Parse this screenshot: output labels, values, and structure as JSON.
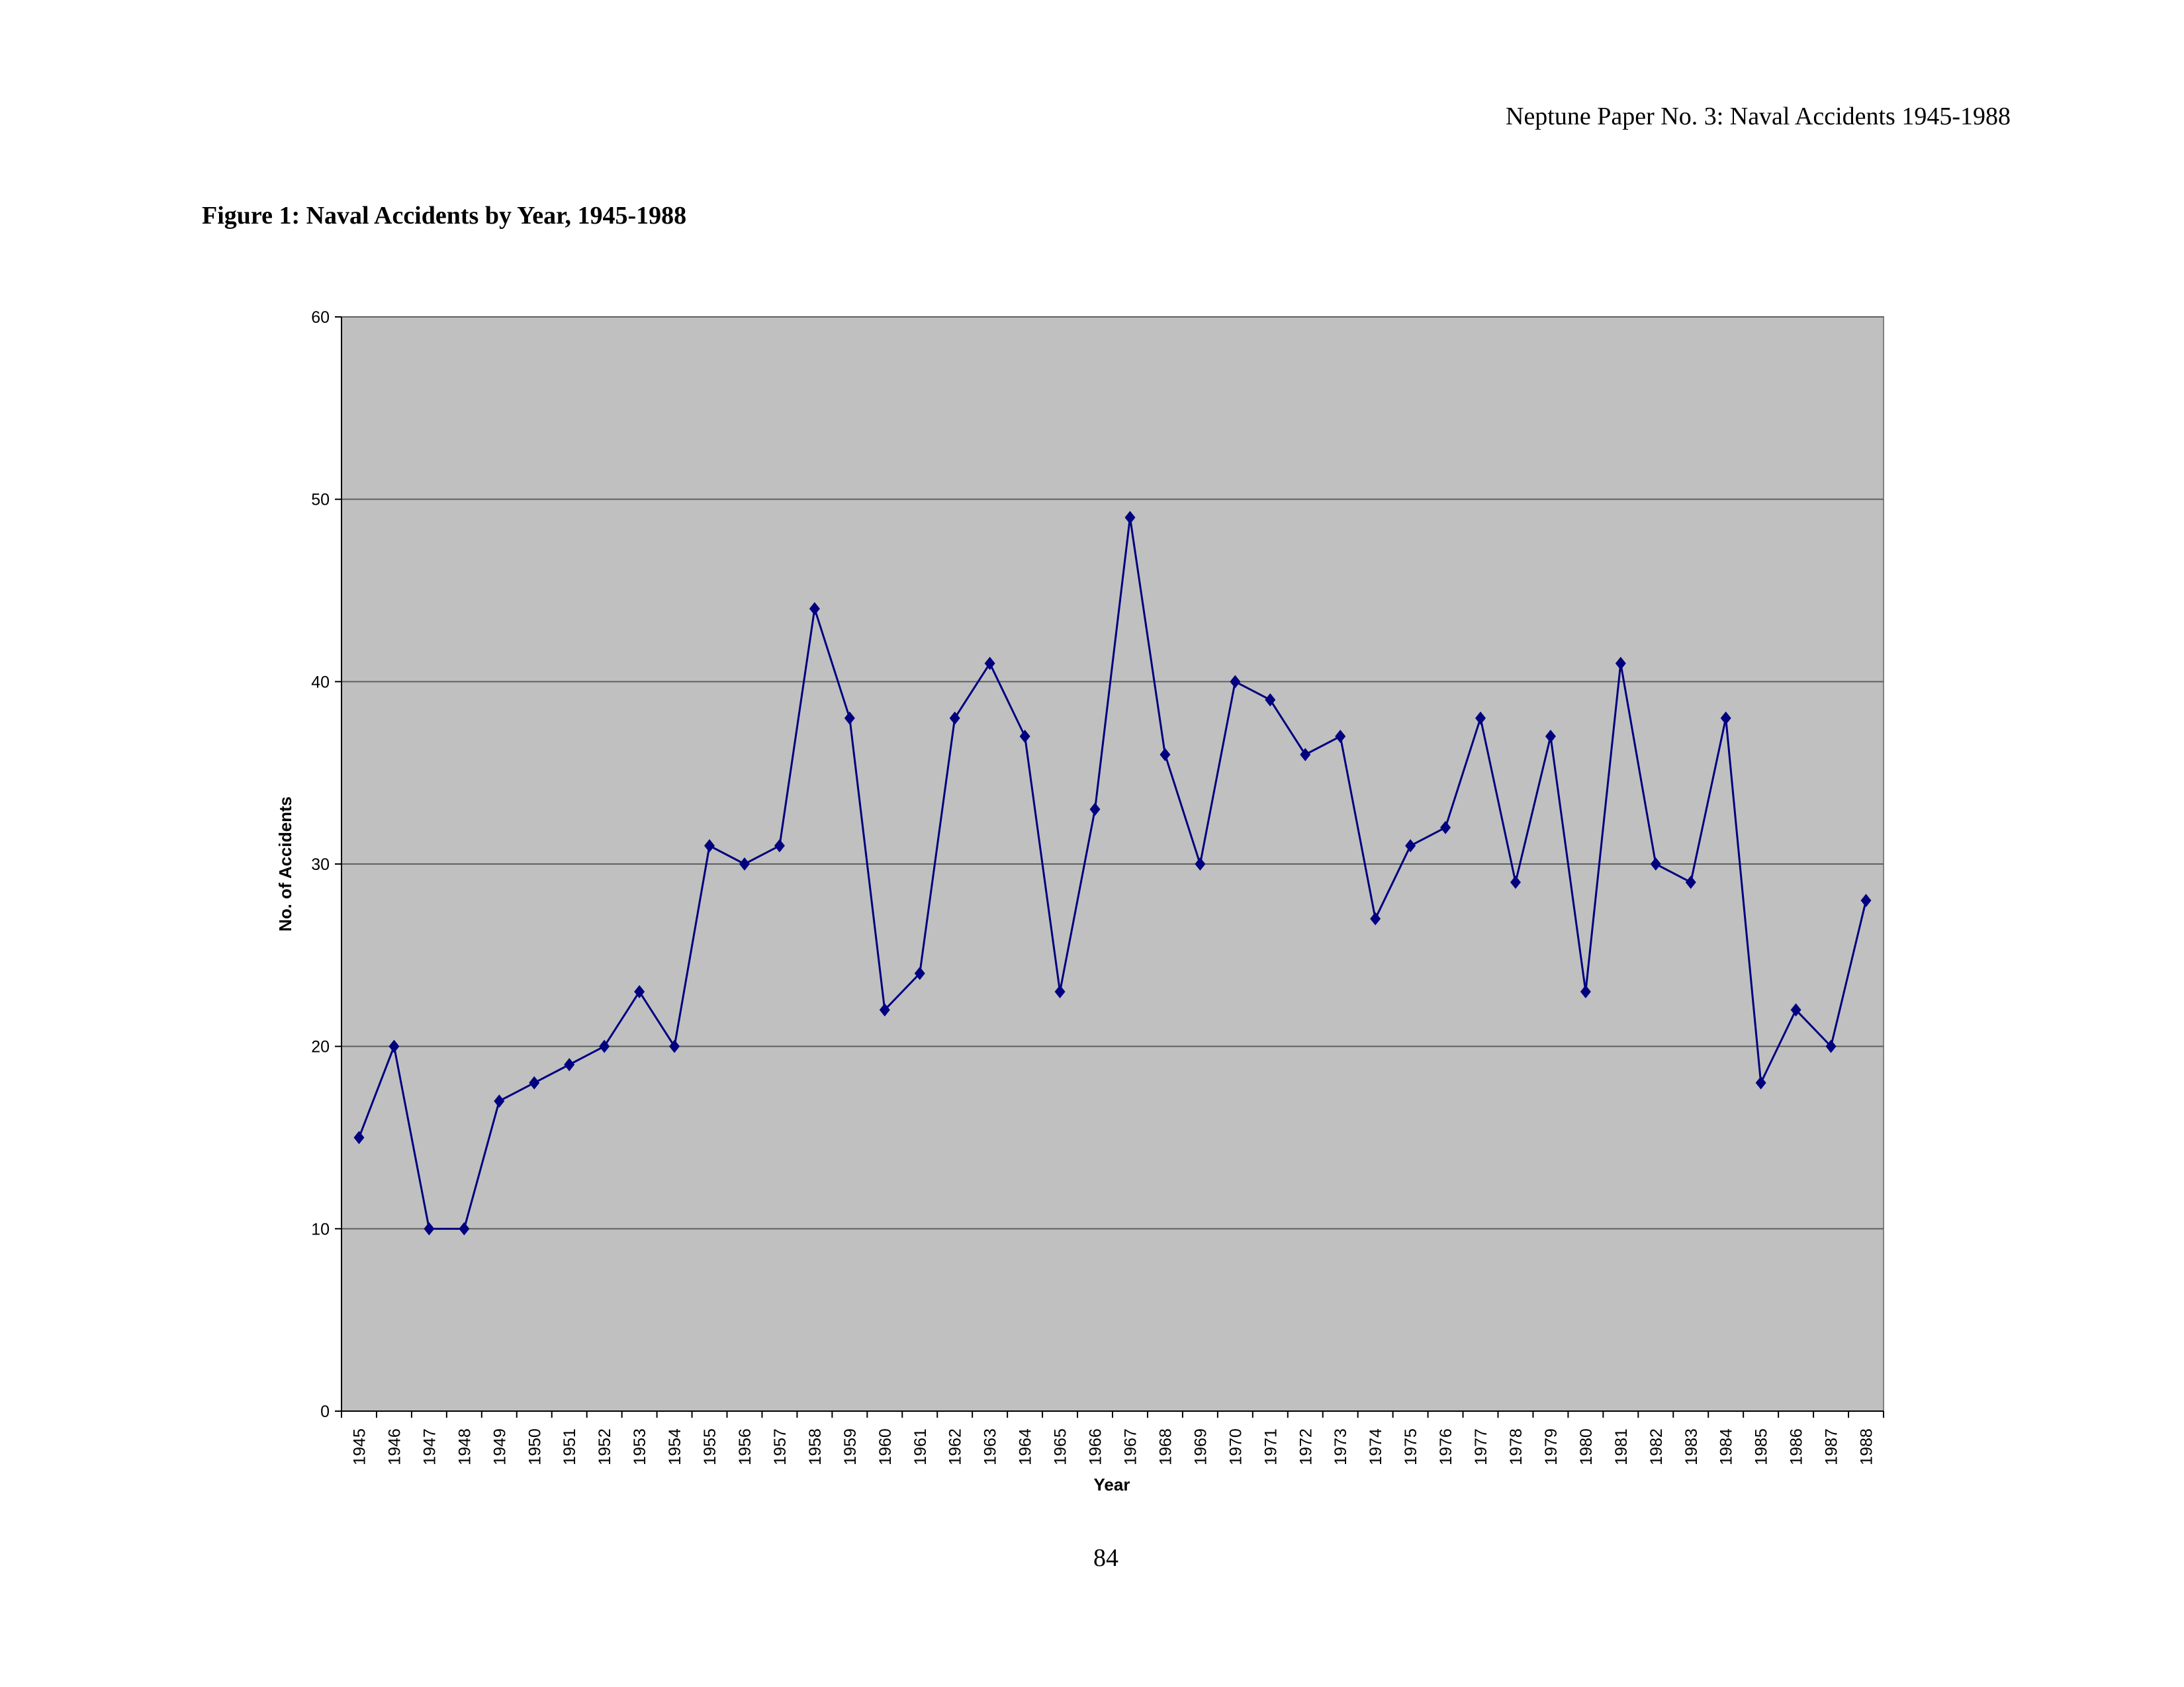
{
  "header": "Neptune Paper No. 3:  Naval Accidents 1945-1988",
  "page_number": "84",
  "chart_data": {
    "type": "line",
    "title": "Figure 1:  Naval Accidents by Year, 1945-1988",
    "x_label": "Year",
    "y_label": "No. of Accidents",
    "categories": [
      "1945",
      "1946",
      "1947",
      "1948",
      "1949",
      "1950",
      "1951",
      "1952",
      "1953",
      "1954",
      "1955",
      "1956",
      "1957",
      "1958",
      "1959",
      "1960",
      "1961",
      "1962",
      "1963",
      "1964",
      "1965",
      "1966",
      "1967",
      "1968",
      "1969",
      "1970",
      "1971",
      "1972",
      "1973",
      "1974",
      "1975",
      "1976",
      "1977",
      "1978",
      "1979",
      "1980",
      "1981",
      "1982",
      "1983",
      "1984",
      "1985",
      "1986",
      "1987",
      "1988"
    ],
    "values": [
      15,
      20,
      10,
      10,
      17,
      18,
      19,
      20,
      23,
      20,
      31,
      30,
      31,
      44,
      38,
      22,
      24,
      38,
      41,
      37,
      23,
      33,
      49,
      36,
      30,
      40,
      39,
      36,
      37,
      27,
      31,
      32,
      38,
      29,
      37,
      23,
      41,
      30,
      29,
      38,
      18,
      22,
      20,
      28
    ],
    "color": "#000080",
    "plot_background": "#c0c0c0",
    "ylim": [
      0,
      60
    ],
    "yticks": [
      0,
      10,
      20,
      30,
      40,
      50,
      60
    ],
    "grid": true
  }
}
